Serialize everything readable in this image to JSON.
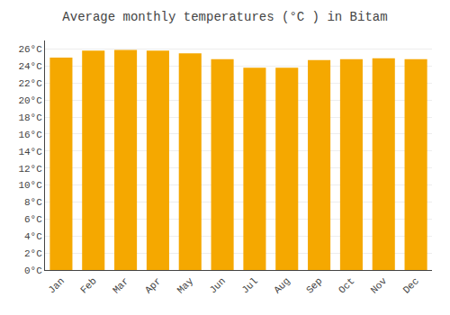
{
  "chart_data": {
    "type": "bar",
    "title": "Average monthly temperatures (°C ) in Bitam",
    "categories": [
      "Jan",
      "Feb",
      "Mar",
      "Apr",
      "May",
      "Jun",
      "Jul",
      "Aug",
      "Sep",
      "Oct",
      "Nov",
      "Dec"
    ],
    "values": [
      25.0,
      25.8,
      25.9,
      25.8,
      25.5,
      24.8,
      23.8,
      23.8,
      24.7,
      24.8,
      24.9,
      24.8
    ],
    "color": "#F5A800",
    "ylim": [
      0,
      27
    ],
    "yticks": [
      {
        "value": 0,
        "label": "0°C"
      },
      {
        "value": 2,
        "label": "2°C"
      },
      {
        "value": 4,
        "label": "4°C"
      },
      {
        "value": 6,
        "label": "6°C"
      },
      {
        "value": 8,
        "label": "8°C"
      },
      {
        "value": 10,
        "label": "10°C"
      },
      {
        "value": 12,
        "label": "12°C"
      },
      {
        "value": 14,
        "label": "14°C"
      },
      {
        "value": 16,
        "label": "16°C"
      },
      {
        "value": 18,
        "label": "18°C"
      },
      {
        "value": 20,
        "label": "20°C"
      },
      {
        "value": 22,
        "label": "22°C"
      },
      {
        "value": 24,
        "label": "24°C"
      },
      {
        "value": 26,
        "label": "26°C"
      }
    ],
    "grid": true
  }
}
